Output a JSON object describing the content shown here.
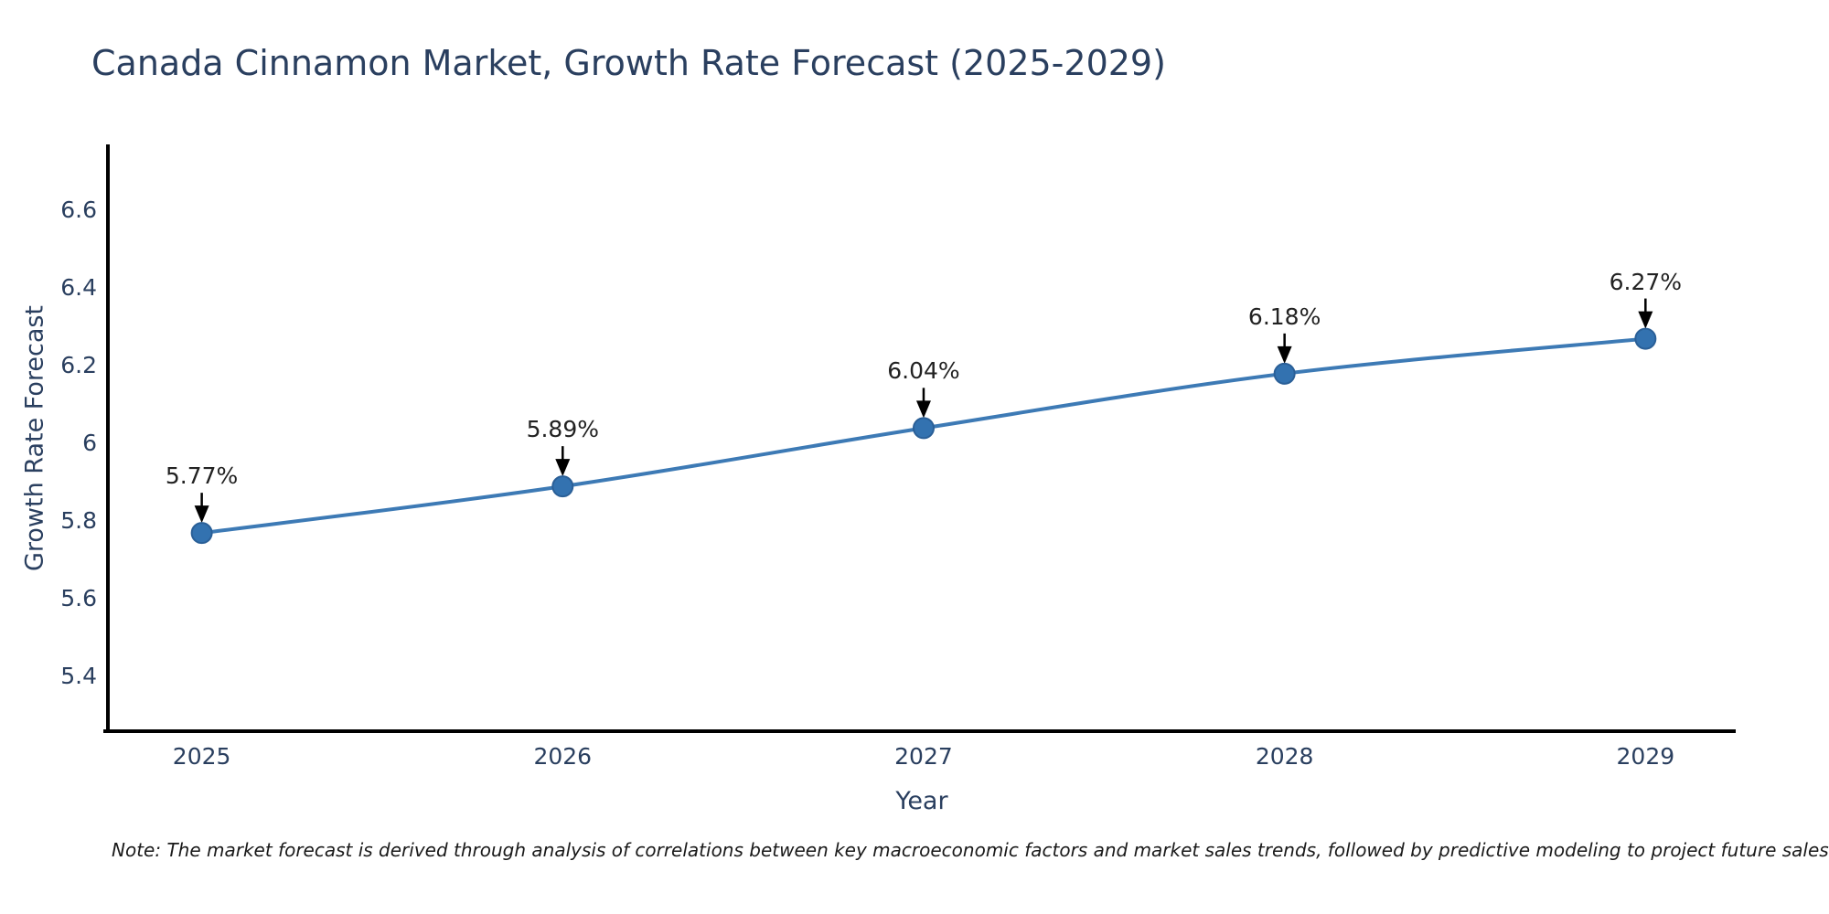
{
  "title": "Canada Cinnamon Market, Growth Rate Forecast (2025-2029)",
  "footnote": "Note: The market forecast is derived through analysis of correlations between key macroeconomic factors and market sales trends, followed by predictive modeling to project future sales",
  "chart_data": {
    "type": "line",
    "title": "Canada Cinnamon Market, Growth Rate Forecast (2025-2029)",
    "xlabel": "Year",
    "ylabel": "Growth Rate Forecast",
    "x": [
      2025,
      2026,
      2027,
      2028,
      2029
    ],
    "series": [
      {
        "name": "Growth Rate Forecast",
        "values": [
          5.77,
          5.89,
          6.04,
          6.18,
          6.27
        ]
      }
    ],
    "point_labels": [
      "5.77%",
      "5.89%",
      "6.04%",
      "6.18%",
      "6.27%"
    ],
    "x_tick_labels": [
      "2025",
      "2026",
      "2027",
      "2028",
      "2029"
    ],
    "y_tick_values": [
      5.4,
      5.6,
      5.8,
      6,
      6.2,
      6.4,
      6.6
    ],
    "y_tick_labels": [
      "5.4",
      "5.6",
      "5.8",
      "6",
      "6.2",
      "6.4",
      "6.6"
    ],
    "xlim": [
      2024.74,
      2029.25
    ],
    "ylim": [
      5.26,
      6.77
    ],
    "grid": false,
    "legend": false,
    "line_shape": "spline",
    "colors": {
      "line": "#3d7ab5",
      "marker": "#3372b0",
      "marker_edge": "#2a5f97",
      "axis": "#000000",
      "text": "#2a3f5f",
      "annotation": "#222222",
      "arrow": "#000000"
    }
  }
}
